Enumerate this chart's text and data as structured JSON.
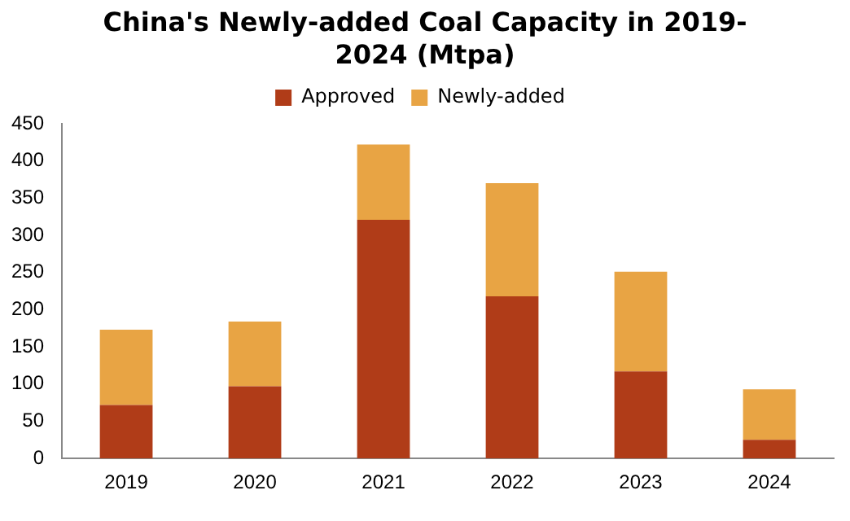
{
  "chart_data": {
    "type": "bar",
    "title": "China's Newly-added Coal Capacity in 2019-2024 (Mtpa)",
    "categories": [
      "2019",
      "2020",
      "2021",
      "2022",
      "2023",
      "2024"
    ],
    "stacked": true,
    "series": [
      {
        "name": "Approved",
        "color": "#b03c18",
        "values": [
          72,
          97,
          321,
          218,
          117,
          25
        ]
      },
      {
        "name": "Newly-added",
        "color": "#e8a444",
        "values": [
          101,
          87,
          101,
          152,
          134,
          68
        ]
      }
    ],
    "ylim": [
      0,
      450
    ],
    "yticks": [
      0,
      50,
      100,
      150,
      200,
      250,
      300,
      350,
      400,
      450
    ],
    "grid": false,
    "legend": "top"
  }
}
